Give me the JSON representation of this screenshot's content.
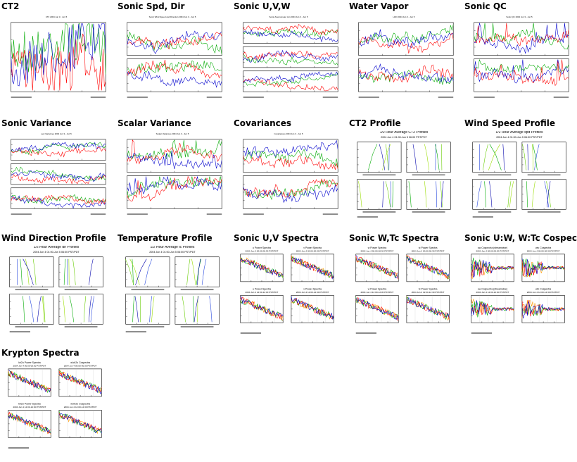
{
  "gallery": {
    "tiles": [
      {
        "title": "CT2",
        "kind": "ts",
        "panels": 1,
        "caption": "CT2 2004 Jun 3 - Jun 5"
      },
      {
        "title": "Sonic Spd, Dir",
        "kind": "ts",
        "panels": 2,
        "caption": "Sonic Wind Speed and Direction 2004 Jun 3 - Jun 5"
      },
      {
        "title": "Sonic U,V,W",
        "kind": "ts",
        "panels": 3,
        "caption": "Sonic Anemometer Jun 2004 Jun 3 - Jun 5"
      },
      {
        "title": "Water Vapor",
        "kind": "ts",
        "panels": 2,
        "caption": "H2O 2004 Jun 3 - Jun 5"
      },
      {
        "title": "Sonic QC",
        "kind": "ts",
        "panels": 2,
        "caption": "Sonic QC 2004 Jun 3 - Jun 5"
      },
      {
        "title": "Sonic Variance",
        "kind": "ts",
        "panels": 3,
        "caption": "uvw Variances 2004 Jun 3 - Jun 5"
      },
      {
        "title": "Scalar Variance",
        "kind": "ts",
        "panels": 2,
        "caption": "Scalar Variances 2004 Jun 3 - Jun 5"
      },
      {
        "title": "Covariances",
        "kind": "ts",
        "panels": 2,
        "caption": "Covariances 2004 Jun 3 - Jun 5"
      },
      {
        "title": "CT2 Profile",
        "kind": "profile",
        "caption": "1/2 Hour Average CT2 Profiles",
        "subcaption": "2004 Jun 4 01:00-Jun 5 06:00 PST/PDT"
      },
      {
        "title": "Wind Speed Profile",
        "kind": "profile",
        "caption": "1/2 Hour Average spd Profiles",
        "subcaption": "2004 Jun 4 01:00-Jun 5 06:00 PST/PDT"
      },
      {
        "title": "Wind Direction Profile",
        "kind": "profile",
        "caption": "1/2 Hour Average dir Profiles",
        "subcaption": "2004 Jun 4 01:00-Jun 5 06:00 PST/PDT"
      },
      {
        "title": "Temperature Profile",
        "kind": "profile",
        "caption": "1/2 Hour Average tc Profiles",
        "subcaption": "2004 Jun 4 01:00-Jun 5 06:00 PST/PDT"
      },
      {
        "title": "Sonic U,V Spectra",
        "kind": "spectra",
        "caption": "u Power Spectra",
        "caption2": "v Power Spectra",
        "subcaption": "2004 Jun 4 00:00-00:30 PST/PDT",
        "subcaption2": "2004 Jun 4 12:00-12:30 PST/PDT"
      },
      {
        "title": "Sonic W,Tc Spectra",
        "kind": "spectra",
        "caption": "w Power Spectra",
        "caption2": "tc Power Spectra",
        "subcaption": "2004 Jun 4 00:00-00:30 PST/PDT",
        "subcaption2": "2004 Jun 4 12:00-12:30 PST/PDT"
      },
      {
        "title": "Sonic U:W, W:Tc Cospectra",
        "kind": "spectra",
        "caption": "uw Cospectra (streamwise)",
        "caption2": "wtc Cospectra",
        "subcaption": "2004 Jun 4 00:00-00:30 PST/PDT",
        "subcaption2": "2004 Jun 4 12:00-12:30 PST/PDT"
      },
      {
        "title": "Krypton Spectra",
        "kind": "spectra",
        "caption": "kh2o Power Spectra",
        "caption2": "w.kh2o Cospectra",
        "subcaption": "2004 Jun 4 00:00-00:30 PST/PDT",
        "subcaption2": "2004 Jun 4 12:00-12:30 PST/PDT"
      }
    ]
  }
}
